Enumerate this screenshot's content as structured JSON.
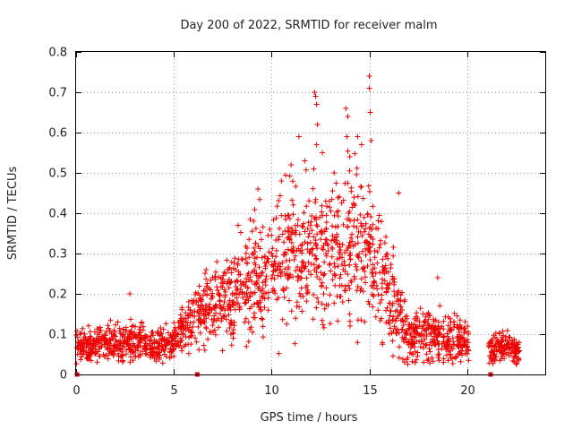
{
  "chart_data": {
    "type": "scatter",
    "title": "Day 200 of 2022, SRMTID for receiver malm",
    "xlabel": "GPS time / hours",
    "ylabel": "SRMTID / TECUs",
    "xlim": [
      0,
      24
    ],
    "ylim": [
      0,
      0.8
    ],
    "xticks": [
      0,
      5,
      10,
      15,
      20
    ],
    "yticks": [
      0,
      0.1,
      0.2,
      0.3,
      0.4,
      0.5,
      0.6,
      0.7,
      0.8
    ],
    "xtick_labels": [
      "0",
      "5",
      "10",
      "15",
      "20"
    ],
    "ytick_labels": [
      "0",
      "0.1",
      "0.2",
      "0.3",
      "0.4",
      "0.5",
      "0.6",
      "0.7",
      "0.8"
    ],
    "grid": true,
    "marker": "plus",
    "color": "#ee0000",
    "data_gap_hours": [
      20.1,
      21.1
    ],
    "axis_markers_x": [
      0.05,
      6.2,
      21.2
    ],
    "envelope": [
      {
        "x": 0.0,
        "mean": 0.07,
        "spread": 0.025
      },
      {
        "x": 1.0,
        "mean": 0.07,
        "spread": 0.025
      },
      {
        "x": 2.0,
        "mean": 0.08,
        "spread": 0.03
      },
      {
        "x": 3.0,
        "mean": 0.08,
        "spread": 0.03
      },
      {
        "x": 4.0,
        "mean": 0.07,
        "spread": 0.025
      },
      {
        "x": 5.0,
        "mean": 0.08,
        "spread": 0.03
      },
      {
        "x": 6.0,
        "mean": 0.14,
        "spread": 0.05
      },
      {
        "x": 7.0,
        "mean": 0.18,
        "spread": 0.06
      },
      {
        "x": 8.0,
        "mean": 0.19,
        "spread": 0.07
      },
      {
        "x": 9.0,
        "mean": 0.23,
        "spread": 0.08
      },
      {
        "x": 10.0,
        "mean": 0.26,
        "spread": 0.09
      },
      {
        "x": 11.0,
        "mean": 0.29,
        "spread": 0.1
      },
      {
        "x": 12.0,
        "mean": 0.3,
        "spread": 0.11
      },
      {
        "x": 13.0,
        "mean": 0.29,
        "spread": 0.1
      },
      {
        "x": 14.0,
        "mean": 0.3,
        "spread": 0.11
      },
      {
        "x": 15.0,
        "mean": 0.3,
        "spread": 0.11
      },
      {
        "x": 16.0,
        "mean": 0.2,
        "spread": 0.08
      },
      {
        "x": 17.0,
        "mean": 0.1,
        "spread": 0.04
      },
      {
        "x": 18.0,
        "mean": 0.1,
        "spread": 0.04
      },
      {
        "x": 19.0,
        "mean": 0.09,
        "spread": 0.035
      },
      {
        "x": 20.0,
        "mean": 0.08,
        "spread": 0.03
      },
      {
        "x": 21.0,
        "mean": 0.06,
        "spread": 0.02
      },
      {
        "x": 22.0,
        "mean": 0.07,
        "spread": 0.025
      },
      {
        "x": 22.7,
        "mean": 0.06,
        "spread": 0.02
      }
    ],
    "samples_per_hour": 90,
    "outliers": [
      {
        "x": 2.75,
        "y": 0.2
      },
      {
        "x": 9.3,
        "y": 0.46
      },
      {
        "x": 10.5,
        "y": 0.48
      },
      {
        "x": 11.0,
        "y": 0.52
      },
      {
        "x": 11.4,
        "y": 0.59
      },
      {
        "x": 11.7,
        "y": 0.53
      },
      {
        "x": 12.2,
        "y": 0.7
      },
      {
        "x": 12.25,
        "y": 0.69
      },
      {
        "x": 12.3,
        "y": 0.67
      },
      {
        "x": 12.35,
        "y": 0.62
      },
      {
        "x": 12.3,
        "y": 0.57
      },
      {
        "x": 12.6,
        "y": 0.55
      },
      {
        "x": 13.2,
        "y": 0.5
      },
      {
        "x": 13.8,
        "y": 0.66
      },
      {
        "x": 13.9,
        "y": 0.64
      },
      {
        "x": 13.85,
        "y": 0.59
      },
      {
        "x": 14.0,
        "y": 0.54
      },
      {
        "x": 14.4,
        "y": 0.59
      },
      {
        "x": 14.6,
        "y": 0.57
      },
      {
        "x": 15.0,
        "y": 0.74
      },
      {
        "x": 15.0,
        "y": 0.71
      },
      {
        "x": 15.05,
        "y": 0.65
      },
      {
        "x": 15.1,
        "y": 0.58
      },
      {
        "x": 16.5,
        "y": 0.45
      },
      {
        "x": 18.5,
        "y": 0.24
      }
    ]
  }
}
